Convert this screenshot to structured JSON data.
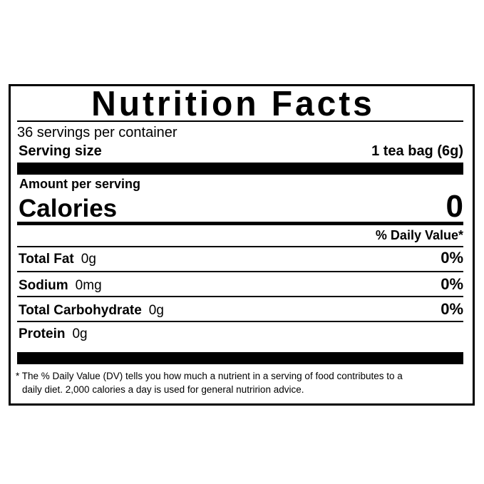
{
  "label": {
    "title": "Nutrition Facts",
    "servings_per_container": "36 servings per container",
    "serving_size_label": "Serving size",
    "serving_size_value": "1 tea bag (6g)",
    "amount_per_serving": "Amount per serving",
    "calories_label": "Calories",
    "calories_value": "0",
    "daily_value_header": "% Daily Value*",
    "nutrients": [
      {
        "name": "Total Fat",
        "amount": "0g",
        "dv": "0%"
      },
      {
        "name": "Sodium",
        "amount": "0mg",
        "dv": "0%"
      },
      {
        "name": "Total Carbohydrate",
        "amount": "0g",
        "dv": "0%"
      },
      {
        "name": "Protein",
        "amount": "0g",
        "dv": ""
      }
    ],
    "footnote_line1": "* The % Daily Value (DV) tells you how much a nutrient in a serving of food contributes to a",
    "footnote_line2": "daily diet. 2,000 calories a day is used for general nutririon advice."
  }
}
